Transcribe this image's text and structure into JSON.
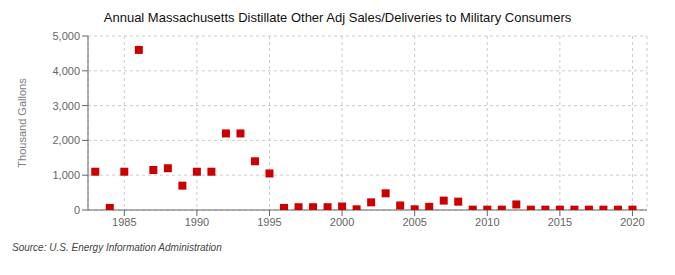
{
  "chart_data": {
    "type": "scatter",
    "title": "Annual Massachusetts Distillate Other Adj Sales/Deliveries to Military Consumers",
    "ylabel": "Thousand Gallons",
    "annotation": "Source: U.S. Energy Information Administration",
    "x": [
      1983,
      1984,
      1985,
      1986,
      1987,
      1988,
      1989,
      1990,
      1991,
      1992,
      1993,
      1994,
      1995,
      1996,
      1997,
      1998,
      1999,
      2000,
      2001,
      2002,
      2003,
      2004,
      2005,
      2006,
      2007,
      2008,
      2009,
      2010,
      2011,
      2012,
      2013,
      2014,
      2015,
      2016,
      2017,
      2018,
      2019,
      2020
    ],
    "values": [
      1100,
      60,
      1100,
      4600,
      1150,
      1200,
      700,
      1100,
      1100,
      2200,
      2200,
      1400,
      1050,
      60,
      80,
      80,
      80,
      100,
      20,
      220,
      480,
      130,
      20,
      90,
      270,
      240,
      10,
      10,
      10,
      160,
      10,
      10,
      10,
      10,
      10,
      10,
      10,
      10
    ],
    "color": "#cc0000",
    "marker": "square",
    "xlim": [
      1982.5,
      2021
    ],
    "xticks": [
      1985,
      1990,
      1995,
      2000,
      2005,
      2010,
      2015,
      2020
    ],
    "ylim": [
      0,
      5000
    ],
    "yticks": [
      0,
      {
        "value": 1000,
        "label": "1,000"
      },
      {
        "value": 2000,
        "label": "2,000"
      },
      {
        "value": 3000,
        "label": "3,000"
      },
      {
        "value": 4000,
        "label": "4,000"
      },
      {
        "value": 5000,
        "label": "5,000"
      }
    ],
    "grid": true
  }
}
